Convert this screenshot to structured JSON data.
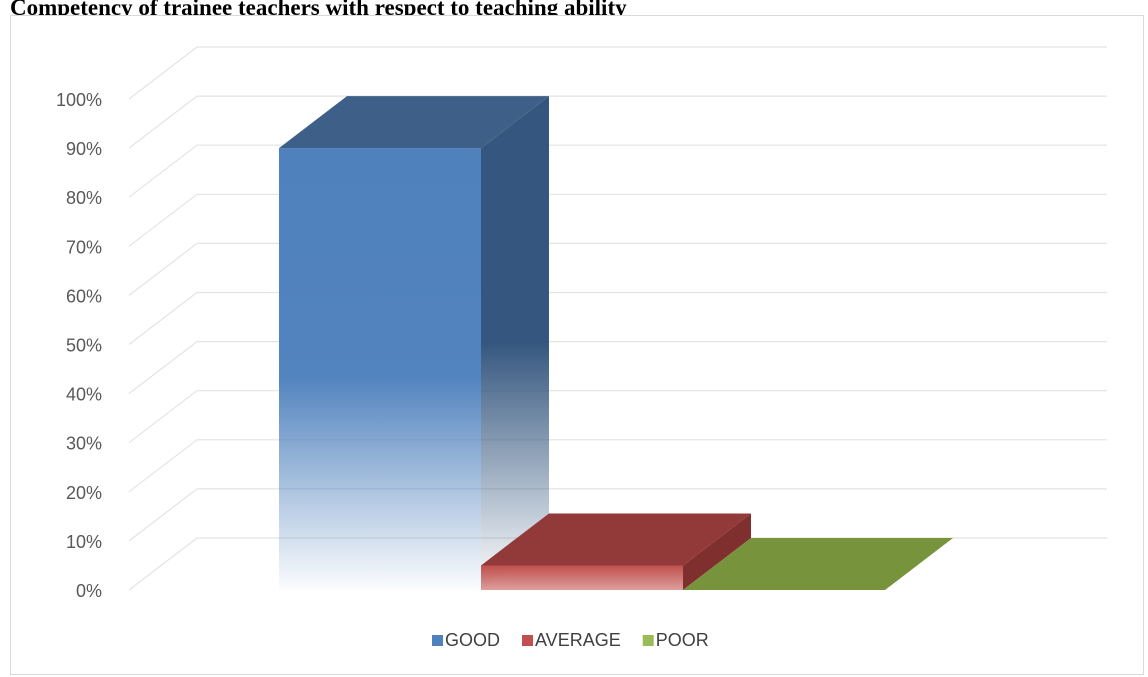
{
  "chart_data": {
    "type": "bar",
    "title": "Competency of trainee teachers with respect to teaching ability",
    "categories": [
      "GOOD",
      "AVERAGE",
      "POOR"
    ],
    "values": [
      90,
      5,
      0
    ],
    "unit": "%",
    "ylim": [
      0,
      100
    ],
    "yticks": [
      0,
      10,
      20,
      30,
      40,
      50,
      60,
      70,
      80,
      90,
      100
    ],
    "grid": true,
    "three_d": true,
    "legend_position": "bottom",
    "colors": {
      "GOOD": "#4f81bd",
      "AVERAGE": "#c0504d",
      "POOR": "#9bbb59"
    }
  }
}
